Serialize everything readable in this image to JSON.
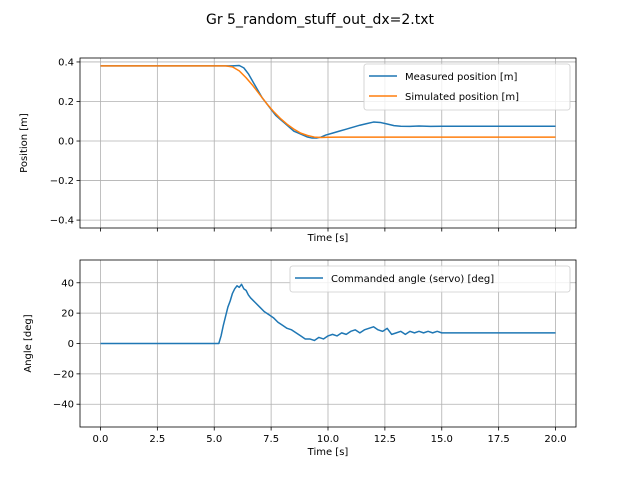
{
  "figure": {
    "suptitle": "Gr 5_random_stuff_out_dx=2.txt"
  },
  "chart_data": [
    {
      "type": "line",
      "xlabel": "Time [s]",
      "ylabel": "Position [m]",
      "xlim": [
        -0.9,
        20.9
      ],
      "ylim": [
        -0.44,
        0.42
      ],
      "xticks": [
        0,
        2.5,
        5,
        7.5,
        10,
        12.5,
        15,
        17.5,
        20
      ],
      "xtick_labels_shown": false,
      "yticks": [
        -0.4,
        -0.2,
        0.0,
        0.2,
        0.4
      ],
      "ytick_labels": [
        "−0.4",
        "−0.2",
        "0.0",
        "0.2",
        "0.4"
      ],
      "grid": true,
      "legend": "upper right",
      "series": [
        {
          "name": "Measured position [m]",
          "color": "#1f77b4",
          "x": [
            0,
            5.8,
            6.1,
            6.3,
            6.5,
            6.7,
            6.9,
            7.1,
            7.3,
            7.5,
            7.7,
            7.9,
            8.1,
            8.3,
            8.5,
            8.7,
            8.9,
            9.1,
            9.3,
            9.5,
            9.7,
            9.9,
            10.2,
            10.5,
            10.8,
            11.1,
            11.4,
            11.7,
            12.0,
            12.3,
            12.6,
            12.9,
            13.2,
            13.6,
            14.0,
            14.5,
            15.0,
            16.0,
            17.0,
            18.0,
            19.0,
            20.0
          ],
          "y": [
            0.38,
            0.38,
            0.382,
            0.37,
            0.34,
            0.3,
            0.26,
            0.22,
            0.19,
            0.16,
            0.13,
            0.11,
            0.09,
            0.07,
            0.05,
            0.04,
            0.03,
            0.02,
            0.015,
            0.015,
            0.02,
            0.03,
            0.04,
            0.05,
            0.06,
            0.07,
            0.08,
            0.088,
            0.096,
            0.094,
            0.086,
            0.078,
            0.075,
            0.074,
            0.076,
            0.074,
            0.075,
            0.075,
            0.075,
            0.075,
            0.075,
            0.075
          ]
        },
        {
          "name": "Simulated position [m]",
          "color": "#ff7f0e",
          "x": [
            0,
            5.5,
            5.8,
            6.1,
            6.4,
            6.7,
            7.0,
            7.3,
            7.6,
            7.9,
            8.2,
            8.5,
            8.8,
            9.1,
            9.4,
            9.7,
            10.0,
            10.5,
            11.0,
            12.0,
            14.0,
            16.0,
            18.0,
            20.0
          ],
          "y": [
            0.38,
            0.38,
            0.375,
            0.355,
            0.32,
            0.28,
            0.235,
            0.19,
            0.15,
            0.115,
            0.085,
            0.06,
            0.04,
            0.028,
            0.02,
            0.018,
            0.019,
            0.02,
            0.02,
            0.02,
            0.02,
            0.02,
            0.02,
            0.02
          ]
        }
      ]
    },
    {
      "type": "line",
      "xlabel": "Time [s]",
      "ylabel": "Angle [deg]",
      "xlim": [
        -0.9,
        20.9
      ],
      "ylim": [
        -55,
        55
      ],
      "xticks": [
        0,
        2.5,
        5,
        7.5,
        10,
        12.5,
        15,
        17.5,
        20
      ],
      "xtick_labels": [
        "0.0",
        "2.5",
        "5.0",
        "7.5",
        "10.0",
        "12.5",
        "15.0",
        "17.5",
        "20.0"
      ],
      "yticks": [
        -40,
        -20,
        0,
        20,
        40
      ],
      "ytick_labels": [
        "−40",
        "−20",
        "0",
        "20",
        "40"
      ],
      "grid": true,
      "legend": "upper right",
      "series": [
        {
          "name": "Commanded angle (servo) [deg]",
          "color": "#1f77b4",
          "x": [
            0,
            5.2,
            5.3,
            5.4,
            5.5,
            5.6,
            5.7,
            5.8,
            5.9,
            6.0,
            6.1,
            6.2,
            6.3,
            6.4,
            6.5,
            6.6,
            6.8,
            7.0,
            7.2,
            7.4,
            7.6,
            7.8,
            8.0,
            8.2,
            8.4,
            8.6,
            8.8,
            9.0,
            9.2,
            9.4,
            9.6,
            9.8,
            10.0,
            10.2,
            10.4,
            10.6,
            10.8,
            11.0,
            11.2,
            11.4,
            11.6,
            11.8,
            12.0,
            12.2,
            12.4,
            12.6,
            12.8,
            13.0,
            13.2,
            13.4,
            13.6,
            13.8,
            14.0,
            14.2,
            14.4,
            14.6,
            14.8,
            15.0,
            15.5,
            16.0,
            17.0,
            18.0,
            19.0,
            20.0
          ],
          "y": [
            0,
            0,
            5,
            12,
            18,
            24,
            28,
            33,
            36,
            38,
            37,
            39,
            36,
            35,
            32,
            30,
            27,
            24,
            21,
            19,
            17,
            14,
            12,
            10,
            9,
            7,
            5,
            3,
            3,
            2,
            4,
            3,
            5,
            6,
            5,
            7,
            6,
            8,
            9,
            7,
            9,
            10,
            11,
            9,
            8,
            10,
            6,
            7,
            8,
            6,
            8,
            7,
            8,
            7,
            8,
            7,
            8,
            7,
            7,
            7,
            7,
            7,
            7,
            7
          ]
        }
      ]
    }
  ]
}
